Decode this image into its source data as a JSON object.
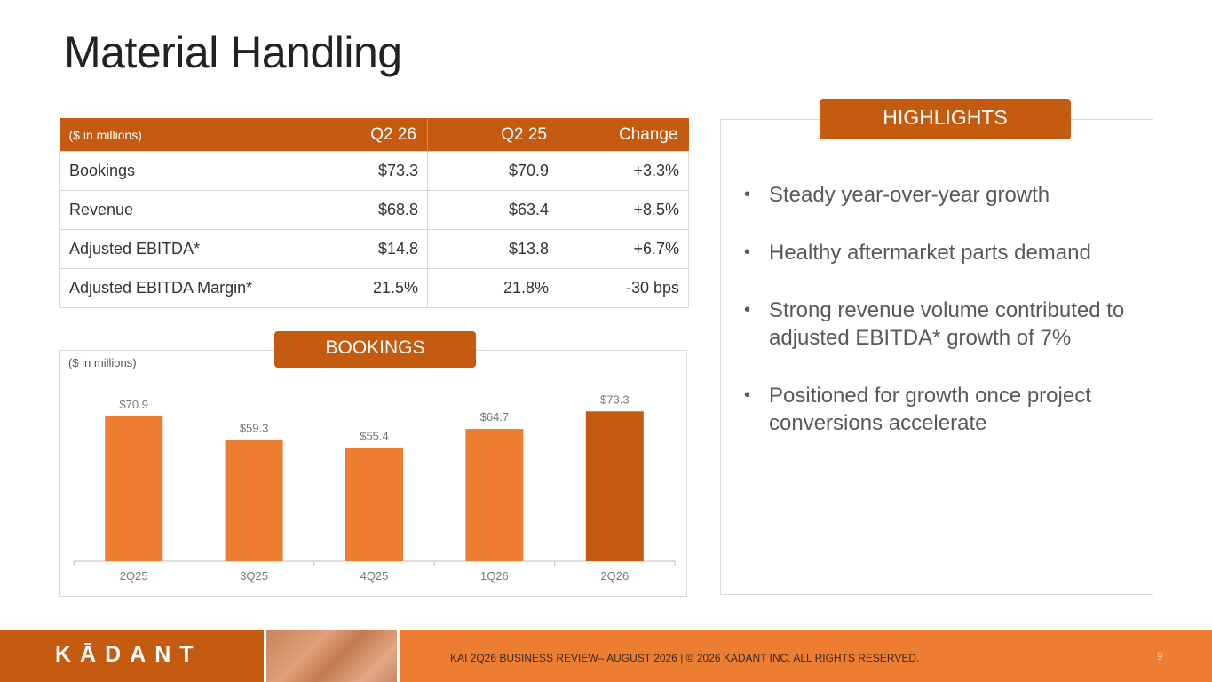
{
  "page": {
    "title": "Material Handling"
  },
  "table": {
    "headers": [
      "($ in millions)",
      "Q2 26",
      "Q2 25",
      "Change"
    ],
    "rows": [
      [
        "Bookings",
        "$73.3",
        "$70.9",
        "+3.3%"
      ],
      [
        "Revenue",
        "$68.8",
        "$63.4",
        "+8.5%"
      ],
      [
        "Adjusted EBITDA*",
        "$14.8",
        "$13.8",
        "+6.7%"
      ],
      [
        "Adjusted EBITDA Margin*",
        "21.5%",
        "21.8%",
        "-30 bps"
      ]
    ]
  },
  "bookings": {
    "tag": "BOOKINGS",
    "units": "($ in millions)"
  },
  "chart_data": {
    "type": "bar",
    "title": "BOOKINGS",
    "categories": [
      "2Q25",
      "3Q25",
      "4Q25",
      "1Q26",
      "2Q26"
    ],
    "values": [
      70.9,
      59.3,
      55.4,
      64.7,
      73.3
    ],
    "labels": [
      "$70.9",
      "$59.3",
      "$55.4",
      "$64.7",
      "$73.3"
    ],
    "ylim": [
      0,
      80
    ],
    "grid": false,
    "colors": {
      "bar": "#ed7d31",
      "highlight": "#c55a11",
      "label": "#777777"
    },
    "highlight_index": 4
  },
  "highlights": {
    "tag": "HIGHLIGHTS",
    "items": [
      "Steady year-over-year growth",
      "Healthy aftermarket parts demand",
      "Strong revenue volume contributed to adjusted EBITDA* growth of 7%",
      "Positioned for growth once project conversions accelerate"
    ]
  },
  "footer": {
    "logo": "KĀDANT",
    "text": "KAI 2Q26 BUSINESS REVIEW– AUGUST 2026 | © 2026 KADANT INC. ALL RIGHTS RESERVED.",
    "page_number": "9"
  },
  "colors": {
    "accent": "#c55a11",
    "accent_light": "#ed7d31",
    "border": "#d9d9d9"
  }
}
